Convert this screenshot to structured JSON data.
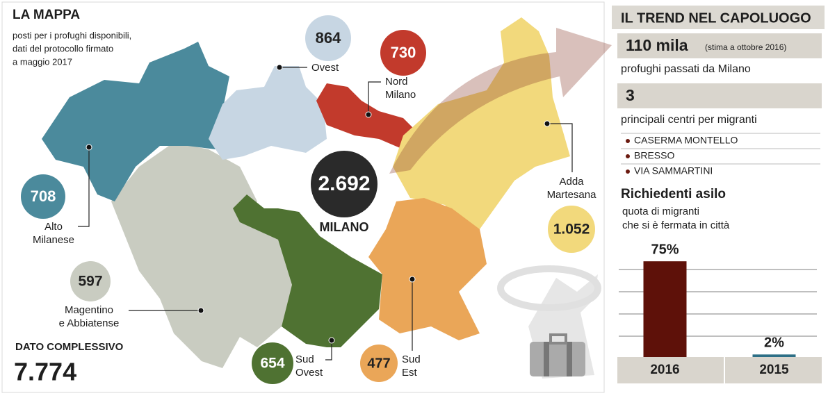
{
  "header": {
    "title": "LA MAPPA",
    "subtitle": [
      "posti per i profughi disponibili,",
      "dati del protocollo  firmato",
      "a maggio 2017"
    ]
  },
  "map": {
    "regions": [
      {
        "value": "864",
        "name": [
          "Ovest"
        ],
        "color": "#c7d6e3"
      },
      {
        "value": "730",
        "name": [
          "Nord",
          "Milano"
        ],
        "color": "#c23a2c"
      },
      {
        "value": "708",
        "name": [
          "Alto",
          "Milanese"
        ],
        "color": "#4b8a9c"
      },
      {
        "value": "597",
        "name": [
          "Magentino",
          "e Abbiatense"
        ],
        "color": "#c9ccc1"
      },
      {
        "value": "654",
        "name": [
          "Sud",
          "Ovest"
        ],
        "color": "#4f7232"
      },
      {
        "value": "477",
        "name": [
          "Sud",
          "Est"
        ],
        "color": "#eaa658"
      },
      {
        "value": "1.052",
        "name": [
          "Adda",
          "Martesana"
        ],
        "color": "#f2d97c"
      },
      {
        "value": "2.692",
        "name": [
          "MILANO"
        ],
        "color": "#2a2a2a"
      }
    ]
  },
  "total": {
    "label": "DATO COMPLESSIVO",
    "value": "7.774"
  },
  "trend": {
    "title": "IL TREND NEL CAPOLUOGO",
    "figure1": "110 mila",
    "figure1_note": "(stima a ottobre 2016)",
    "figure1_caption": "profughi passati da Milano",
    "figure2": "3",
    "figure2_caption": "principali centri per migranti",
    "centers": [
      "CASERMA MONTELLO",
      "BRESSO",
      "VIA SAMMARTINI"
    ]
  },
  "chart_data": {
    "type": "bar",
    "title": "Richiedenti asilo",
    "subtitle": [
      "quota di migranti",
      "che si è fermata in città"
    ],
    "categories": [
      "2016",
      "2015"
    ],
    "values": [
      75,
      2
    ],
    "value_labels": [
      "75%",
      "2%"
    ],
    "colors": [
      "#5e1109",
      "#2d6f86"
    ],
    "ylim": [
      0,
      80
    ]
  }
}
